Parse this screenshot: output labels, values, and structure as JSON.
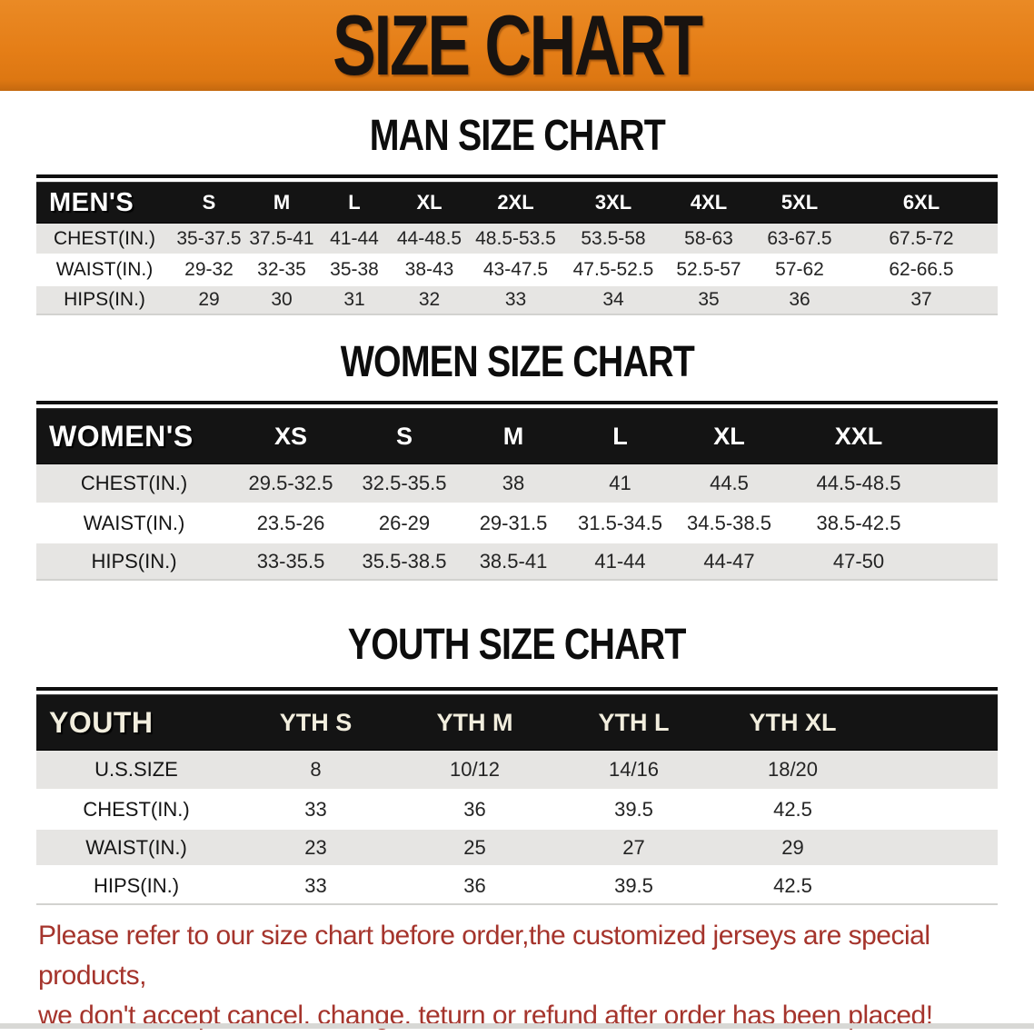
{
  "banner": {
    "title": "SIZE CHART",
    "bg_color": "#e57e17",
    "title_color": "#181310"
  },
  "sections": [
    {
      "id": "men",
      "heading": "MAN SIZE CHART",
      "header_label": "MEN'S",
      "columns": [
        "S",
        "M",
        "L",
        "XL",
        "2XL",
        "3XL",
        "4XL",
        "5XL",
        "6XL"
      ],
      "rows": [
        {
          "label": "CHEST(IN.)",
          "values": [
            "35-37.5",
            "37.5-41",
            "41-44",
            "44-48.5",
            "48.5-53.5",
            "53.5-58",
            "58-63",
            "63-67.5",
            "67.5-72"
          ]
        },
        {
          "label": "WAIST(IN.)",
          "values": [
            "29-32",
            "32-35",
            "35-38",
            "38-43",
            "43-47.5",
            "47.5-52.5",
            "52.5-57",
            "57-62",
            "62-66.5"
          ]
        },
        {
          "label": "HIPS(IN.)",
          "values": [
            "29",
            "30",
            "31",
            "32",
            "33",
            "34",
            "35",
            "36",
            "37"
          ]
        }
      ]
    },
    {
      "id": "women",
      "heading": "WOMEN SIZE CHART",
      "header_label": "WOMEN'S",
      "columns": [
        "XS",
        "S",
        "M",
        "L",
        "XL",
        "XXL"
      ],
      "rows": [
        {
          "label": "CHEST(IN.)",
          "values": [
            "29.5-32.5",
            "32.5-35.5",
            "38",
            "41",
            "44.5",
            "44.5-48.5"
          ]
        },
        {
          "label": "WAIST(IN.)",
          "values": [
            "23.5-26",
            "26-29",
            "29-31.5",
            "31.5-34.5",
            "34.5-38.5",
            "38.5-42.5"
          ]
        },
        {
          "label": "HIPS(IN.)",
          "values": [
            "33-35.5",
            "35.5-38.5",
            "38.5-41",
            "41-44",
            "44-47",
            "47-50"
          ]
        }
      ]
    },
    {
      "id": "youth",
      "heading": "YOUTH SIZE CHART",
      "header_label": "YOUTH",
      "columns": [
        "YTH S",
        "YTH M",
        "YTH L",
        "YTH XL"
      ],
      "rows": [
        {
          "label": "U.S.SIZE",
          "values": [
            "8",
            "10/12",
            "14/16",
            "18/20"
          ]
        },
        {
          "label": "CHEST(IN.)",
          "values": [
            "33",
            "36",
            "39.5",
            "42.5"
          ]
        },
        {
          "label": "WAIST(IN.)",
          "values": [
            "23",
            "25",
            "27",
            "29"
          ]
        },
        {
          "label": "HIPS(IN.)",
          "values": [
            "33",
            "36",
            "39.5",
            "42.5"
          ]
        }
      ]
    }
  ],
  "footer": {
    "line1": "Please refer to our size chart before order,the customized jerseys are special products,",
    "line2": "we don't accept cancel, change, teturn or refund after order has been placed!",
    "text_color": "#a5342c"
  },
  "colors": {
    "table_header_bg": "#141414",
    "row_alt_bg": "#e6e5e3",
    "row_bg": "#ffffff"
  }
}
